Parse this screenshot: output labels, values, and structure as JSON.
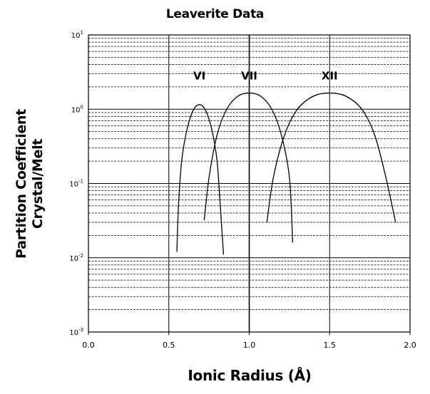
{
  "chart_data": {
    "type": "line",
    "title": "Leaverite Data",
    "xlabel": "Ionic Radius (Å)",
    "ylabel": [
      "Partition Coefficient",
      "Crystal/Melt"
    ],
    "xlim": [
      0.0,
      2.0
    ],
    "ylim": [
      0.001,
      10
    ],
    "yscale": "log",
    "grid": true,
    "x_ticks": [
      "0.0",
      "0.5",
      "1.0",
      "1.5",
      "2.0"
    ],
    "y_ticks": [
      {
        "base": "10",
        "exp": "-3",
        "value": 0.001
      },
      {
        "base": "10",
        "exp": "-2",
        "value": 0.01
      },
      {
        "base": "10",
        "exp": "-1",
        "value": 0.1
      },
      {
        "base": "10",
        "exp": "0",
        "value": 1
      },
      {
        "base": "10",
        "exp": "1",
        "value": 10
      }
    ],
    "vertical_lines": [
      0.5,
      1.0,
      1.5
    ],
    "series": [
      {
        "label": "VI",
        "label_x": 0.69,
        "label_y": 2.8,
        "points": [
          [
            0.55,
            0.012
          ],
          [
            0.56,
            0.05
          ],
          [
            0.58,
            0.2
          ],
          [
            0.61,
            0.5
          ],
          [
            0.65,
            0.95
          ],
          [
            0.69,
            1.15
          ],
          [
            0.73,
            0.95
          ],
          [
            0.77,
            0.5
          ],
          [
            0.8,
            0.2
          ],
          [
            0.82,
            0.05
          ],
          [
            0.84,
            0.011
          ]
        ]
      },
      {
        "label": "VII",
        "label_x": 1.0,
        "label_y": 2.8,
        "points": [
          [
            0.72,
            0.032
          ],
          [
            0.75,
            0.12
          ],
          [
            0.8,
            0.45
          ],
          [
            0.86,
            1.0
          ],
          [
            0.93,
            1.5
          ],
          [
            1.0,
            1.65
          ],
          [
            1.07,
            1.5
          ],
          [
            1.14,
            1.0
          ],
          [
            1.2,
            0.45
          ],
          [
            1.25,
            0.12
          ],
          [
            1.27,
            0.016
          ]
        ]
      },
      {
        "label": "XII",
        "label_x": 1.5,
        "label_y": 2.8,
        "points": [
          [
            1.11,
            0.03
          ],
          [
            1.15,
            0.12
          ],
          [
            1.22,
            0.45
          ],
          [
            1.3,
            1.0
          ],
          [
            1.4,
            1.5
          ],
          [
            1.5,
            1.65
          ],
          [
            1.6,
            1.5
          ],
          [
            1.7,
            1.0
          ],
          [
            1.78,
            0.45
          ],
          [
            1.85,
            0.12
          ],
          [
            1.91,
            0.03
          ]
        ]
      }
    ]
  }
}
